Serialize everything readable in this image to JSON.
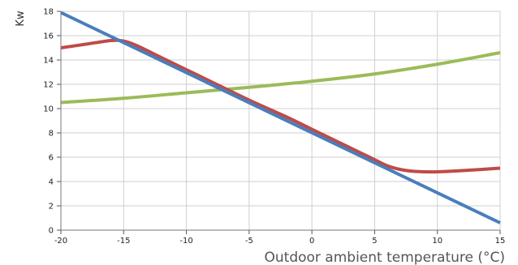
{
  "chart_data": {
    "type": "line",
    "title": "",
    "xlabel": "Outdoor ambient temperature (°C)",
    "ylabel": "Kw",
    "xlim": [
      -20,
      15
    ],
    "ylim": [
      0,
      18
    ],
    "xticks": [
      -20,
      -15,
      -10,
      -5,
      0,
      5,
      10,
      15
    ],
    "yticks": [
      0,
      2,
      4,
      6,
      8,
      10,
      12,
      14,
      16,
      18
    ],
    "grid": true,
    "legend": "none",
    "series": [
      {
        "color": "#4a7ebb",
        "x": [
          -20,
          15
        ],
        "y": [
          17.9,
          0.6
        ]
      },
      {
        "color": "#be4b48",
        "x": [
          -20,
          -18,
          -16,
          -15,
          -14,
          -12,
          -10,
          -8,
          -5,
          -2,
          0,
          2,
          4,
          5,
          6,
          7,
          8,
          9,
          10,
          12,
          15
        ],
        "y": [
          15.0,
          15.3,
          15.6,
          15.55,
          15.2,
          14.2,
          13.2,
          12.2,
          10.7,
          9.3,
          8.3,
          7.3,
          6.3,
          5.8,
          5.3,
          5.0,
          4.85,
          4.8,
          4.8,
          4.9,
          5.1
        ]
      },
      {
        "color": "#9bbb59",
        "x": [
          -20,
          -15,
          -10,
          -5,
          0,
          5,
          10,
          15
        ],
        "y": [
          10.5,
          10.85,
          11.3,
          11.75,
          12.25,
          12.85,
          13.65,
          14.6
        ]
      }
    ]
  }
}
